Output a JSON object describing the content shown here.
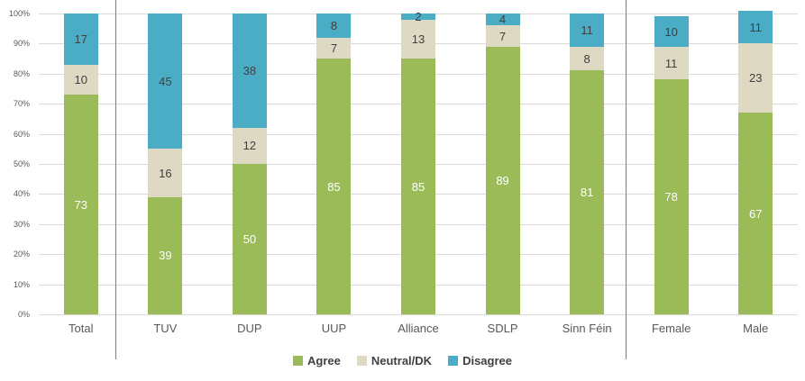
{
  "chart_data": {
    "type": "bar",
    "stacked": true,
    "title": "",
    "categories": [
      "Total",
      "TUV",
      "DUP",
      "UUP",
      "Alliance",
      "SDLP",
      "Sinn Féin",
      "Female",
      "Male"
    ],
    "series": [
      {
        "name": "Agree",
        "color": "#9bbb59",
        "label_color": "#ffffff",
        "values": [
          73,
          39,
          50,
          85,
          85,
          89,
          81,
          78,
          67
        ]
      },
      {
        "name": "Neutral/DK",
        "color": "#ddd9c3",
        "label_color": "#404040",
        "values": [
          10,
          16,
          12,
          7,
          13,
          7,
          8,
          11,
          23
        ]
      },
      {
        "name": "Disagree",
        "color": "#4bacc6",
        "label_color": "#404040",
        "values": [
          17,
          45,
          38,
          8,
          2,
          4,
          11,
          10,
          11
        ]
      }
    ],
    "y_axis": {
      "min": 0,
      "max": 100,
      "tick_step": 10,
      "ticks": [
        "0%",
        "10%",
        "20%",
        "30%",
        "40%",
        "50%",
        "60%",
        "70%",
        "80%",
        "90%",
        "100%"
      ]
    },
    "grid": true,
    "legend_position": "bottom",
    "legend": [
      {
        "label": "Agree",
        "color": "#9bbb59"
      },
      {
        "label": "Neutral/DK",
        "color": "#ddd9c3"
      },
      {
        "label": "Disagree",
        "color": "#4bacc6"
      }
    ],
    "separators_after_categories": [
      "Total",
      "Sinn Féin"
    ]
  },
  "colors": {
    "gridline": "#dadada",
    "axis_text": "#595959",
    "separator": "#7f7f7f",
    "legend_text": "#404040",
    "background": "#ffffff"
  }
}
